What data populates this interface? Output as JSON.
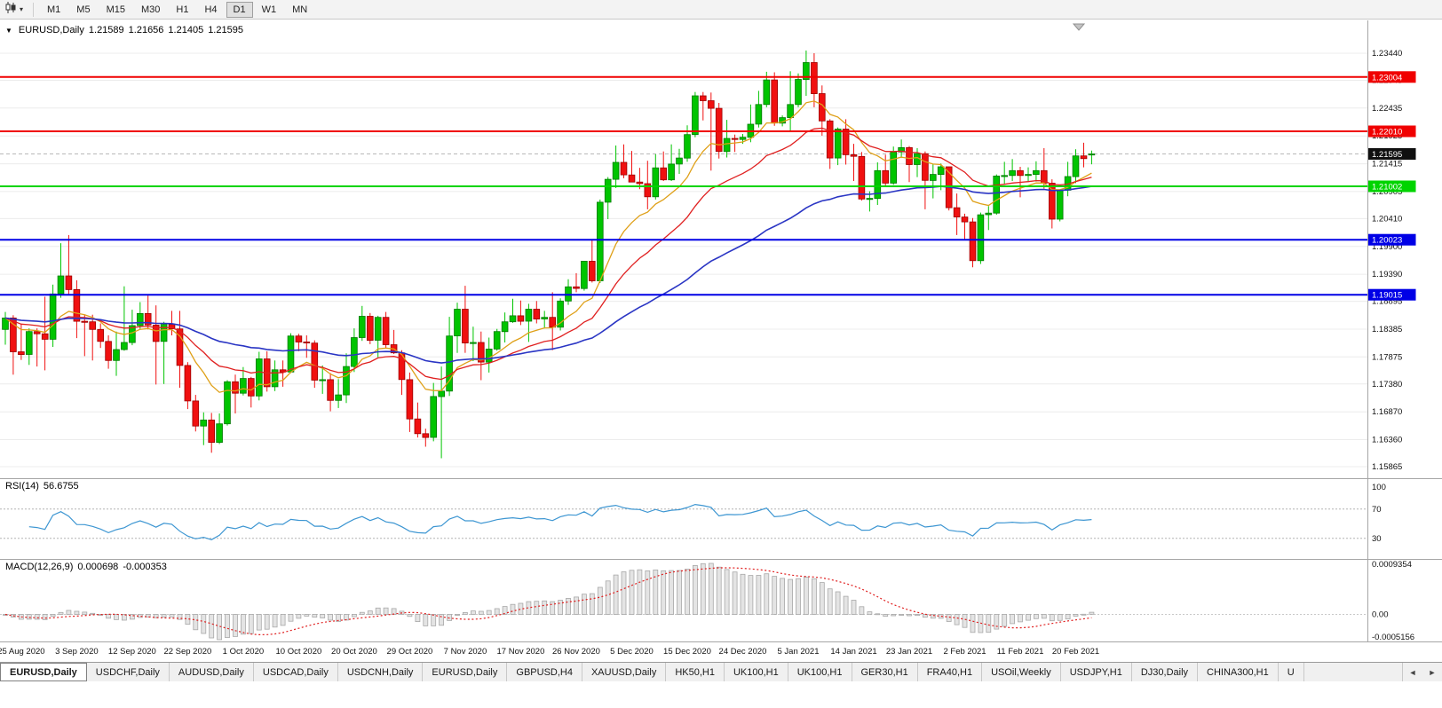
{
  "toolbar": {
    "timeframes": [
      {
        "label": "M1",
        "active": false
      },
      {
        "label": "M5",
        "active": false
      },
      {
        "label": "M15",
        "active": false
      },
      {
        "label": "M30",
        "active": false
      },
      {
        "label": "H1",
        "active": false
      },
      {
        "label": "H4",
        "active": false
      },
      {
        "label": "D1",
        "active": true
      },
      {
        "label": "W1",
        "active": false
      },
      {
        "label": "MN",
        "active": false
      }
    ],
    "dropdown_caret": "▾"
  },
  "chart_header": {
    "collapse_arrow": "▼",
    "symbol_period": "EURUSD,Daily",
    "open": "1.21589",
    "high": "1.21656",
    "low": "1.21405",
    "close": "1.21595"
  },
  "chart_data": {
    "type": "candlestick",
    "symbol": "EURUSD",
    "timeframe": "Daily",
    "candle_colors": {
      "up": "#00c400",
      "down": "#f01010",
      "up_border": "#007a00",
      "down_border": "#9c0000"
    },
    "price_scale_labels": [
      "1.23440",
      "1.22945",
      "1.22435",
      "1.21925",
      "1.21415",
      "1.20905",
      "1.20410",
      "1.19900",
      "1.19390",
      "1.18895",
      "1.18385",
      "1.17875",
      "1.17380",
      "1.16870",
      "1.16360",
      "1.15865"
    ],
    "date_labels": [
      "25 Aug 2020",
      "3 Sep 2020",
      "12 Sep 2020",
      "22 Sep 2020",
      "1 Oct 2020",
      "10 Oct 2020",
      "20 Oct 2020",
      "29 Oct 2020",
      "7 Nov 2020",
      "17 Nov 2020",
      "26 Nov 2020",
      "5 Dec 2020",
      "15 Dec 2020",
      "24 Dec 2020",
      "5 Jan 2021",
      "14 Jan 2021",
      "23 Jan 2021",
      "2 Feb 2021",
      "11 Feb 2021",
      "20 Feb 2021"
    ],
    "horizontal_lines": [
      {
        "price": 1.23004,
        "label": "1.23004",
        "color": "#f00000"
      },
      {
        "price": 1.2201,
        "label": "1.22010",
        "color": "#f00000"
      },
      {
        "price": 1.21002,
        "label": "1.21002",
        "color": "#00d400"
      },
      {
        "price": 1.20023,
        "label": "1.20023",
        "color": "#0000e6"
      },
      {
        "price": 1.19015,
        "label": "1.19015",
        "color": "#0000e6"
      }
    ],
    "current_price": {
      "price": 1.21595,
      "label": "1.21595",
      "badge_color": "#101010"
    },
    "moving_averages": [
      {
        "period": 10,
        "method": "ema",
        "color": "#dfa018"
      },
      {
        "period": 21,
        "method": "ema",
        "color": "#e02020"
      },
      {
        "period": 55,
        "method": "ema",
        "color": "#2a35c4"
      }
    ],
    "indicators": {
      "rsi": {
        "label": "RSI(14)",
        "current": "56.6755",
        "period": 14,
        "scale_labels": [
          "100",
          "70",
          "30"
        ],
        "levels": [
          70,
          30
        ],
        "line_color": "#3d96d2"
      },
      "macd": {
        "label": "MACD(12,26,9)",
        "current_main": "0.000698",
        "current_signal": "-0.000353",
        "fast": 12,
        "slow": 26,
        "signal": 9,
        "scale_labels": [
          "0.0009354",
          "0.00",
          "-0.0005156"
        ],
        "histogram_fill": "#e4e4e4",
        "histogram_border": "#a8a8a8",
        "signal_color": "#e02020"
      }
    },
    "candles": [
      [
        1.1838,
        1.187,
        1.181,
        1.1859
      ],
      [
        1.1859,
        1.1864,
        1.1755,
        1.1797
      ],
      [
        1.1797,
        1.1848,
        1.1782,
        1.1792
      ],
      [
        1.1792,
        1.184,
        1.1773,
        1.1834
      ],
      [
        1.1834,
        1.184,
        1.177,
        1.183
      ],
      [
        1.183,
        1.1898,
        1.1763,
        1.182
      ],
      [
        1.182,
        1.192,
        1.1806,
        1.1903
      ],
      [
        1.1903,
        1.1996,
        1.1896,
        1.1936
      ],
      [
        1.1936,
        1.2011,
        1.1901,
        1.1911
      ],
      [
        1.1911,
        1.1928,
        1.1822,
        1.1853
      ],
      [
        1.1853,
        1.1865,
        1.1789,
        1.1852
      ],
      [
        1.1852,
        1.1865,
        1.1781,
        1.1838
      ],
      [
        1.1838,
        1.1849,
        1.1804,
        1.1816
      ],
      [
        1.1816,
        1.1827,
        1.1766,
        1.1781
      ],
      [
        1.1781,
        1.1834,
        1.1753,
        1.1801
      ],
      [
        1.1801,
        1.1917,
        1.1799,
        1.1814
      ],
      [
        1.1814,
        1.1874,
        1.1809,
        1.1845
      ],
      [
        1.1845,
        1.1888,
        1.1839,
        1.1867
      ],
      [
        1.1867,
        1.19,
        1.1838,
        1.1846
      ],
      [
        1.1846,
        1.1882,
        1.1737,
        1.1816
      ],
      [
        1.1816,
        1.1852,
        1.1738,
        1.1847
      ],
      [
        1.1847,
        1.1872,
        1.1827,
        1.1839
      ],
      [
        1.1839,
        1.1872,
        1.1731,
        1.1772
      ],
      [
        1.1772,
        1.1778,
        1.1692,
        1.1707
      ],
      [
        1.1707,
        1.1718,
        1.1651,
        1.1661
      ],
      [
        1.1661,
        1.1686,
        1.1626,
        1.1672
      ],
      [
        1.1672,
        1.1685,
        1.1612,
        1.1631
      ],
      [
        1.1631,
        1.1684,
        1.1628,
        1.1665
      ],
      [
        1.1665,
        1.1745,
        1.1662,
        1.1742
      ],
      [
        1.1742,
        1.1755,
        1.1684,
        1.1721
      ],
      [
        1.1721,
        1.1769,
        1.1717,
        1.1748
      ],
      [
        1.1748,
        1.1751,
        1.1695,
        1.1716
      ],
      [
        1.1716,
        1.1797,
        1.1708,
        1.1784
      ],
      [
        1.1784,
        1.1798,
        1.1724,
        1.1733
      ],
      [
        1.1733,
        1.1781,
        1.1725,
        1.1764
      ],
      [
        1.1764,
        1.1781,
        1.1733,
        1.176
      ],
      [
        1.176,
        1.1831,
        1.1758,
        1.1826
      ],
      [
        1.1826,
        1.183,
        1.1798,
        1.1815
      ],
      [
        1.1815,
        1.1827,
        1.1786,
        1.1813
      ],
      [
        1.1813,
        1.1818,
        1.1731,
        1.1745
      ],
      [
        1.1745,
        1.1772,
        1.172,
        1.1746
      ],
      [
        1.1746,
        1.1758,
        1.1688,
        1.1708
      ],
      [
        1.1708,
        1.1747,
        1.1694,
        1.1718
      ],
      [
        1.1718,
        1.1794,
        1.1703,
        1.177
      ],
      [
        1.177,
        1.184,
        1.176,
        1.1823
      ],
      [
        1.1823,
        1.1881,
        1.1817,
        1.1862
      ],
      [
        1.1862,
        1.1868,
        1.1811,
        1.1818
      ],
      [
        1.1818,
        1.1863,
        1.1787,
        1.186
      ],
      [
        1.186,
        1.187,
        1.1803,
        1.181
      ],
      [
        1.181,
        1.1837,
        1.1793,
        1.1795
      ],
      [
        1.1795,
        1.18,
        1.1718,
        1.1746
      ],
      [
        1.1746,
        1.1759,
        1.165,
        1.1674
      ],
      [
        1.1674,
        1.1704,
        1.164,
        1.1647
      ],
      [
        1.1647,
        1.1656,
        1.1623,
        1.164
      ],
      [
        1.164,
        1.174,
        1.1633,
        1.1715
      ],
      [
        1.1715,
        1.177,
        1.1602,
        1.1725
      ],
      [
        1.1725,
        1.1861,
        1.1716,
        1.1826
      ],
      [
        1.1826,
        1.1887,
        1.1795,
        1.1875
      ],
      [
        1.1875,
        1.1918,
        1.1795,
        1.1813
      ],
      [
        1.1813,
        1.1843,
        1.178,
        1.1814
      ],
      [
        1.1814,
        1.1834,
        1.1745,
        1.1778
      ],
      [
        1.1778,
        1.1823,
        1.1759,
        1.1802
      ],
      [
        1.1802,
        1.1839,
        1.1799,
        1.1834
      ],
      [
        1.1834,
        1.1869,
        1.1814,
        1.1852
      ],
      [
        1.1852,
        1.1894,
        1.185,
        1.1863
      ],
      [
        1.1863,
        1.1891,
        1.1846,
        1.1853
      ],
      [
        1.1853,
        1.1885,
        1.1815,
        1.1875
      ],
      [
        1.1875,
        1.189,
        1.1849,
        1.1857
      ],
      [
        1.1857,
        1.1872,
        1.184,
        1.186
      ],
      [
        1.186,
        1.1906,
        1.18,
        1.1842
      ],
      [
        1.1842,
        1.1895,
        1.1836,
        1.189
      ],
      [
        1.189,
        1.193,
        1.1883,
        1.1916
      ],
      [
        1.1916,
        1.1941,
        1.1906,
        1.1913
      ],
      [
        1.1913,
        1.1963,
        1.1909,
        1.1963
      ],
      [
        1.1963,
        1.2003,
        1.1924,
        1.1927
      ],
      [
        1.1927,
        1.2076,
        1.1923,
        1.2071
      ],
      [
        1.2071,
        1.2117,
        1.204,
        1.2113
      ],
      [
        1.2113,
        1.2175,
        1.2097,
        1.2144
      ],
      [
        1.2144,
        1.2177,
        1.2115,
        1.2121
      ],
      [
        1.2121,
        1.2165,
        1.2108,
        1.2108
      ],
      [
        1.2108,
        1.2134,
        1.2095,
        1.2105
      ],
      [
        1.2105,
        1.2147,
        1.2058,
        1.2081
      ],
      [
        1.2081,
        1.2159,
        1.2076,
        1.2134
      ],
      [
        1.2134,
        1.2164,
        1.211,
        1.2112
      ],
      [
        1.2112,
        1.2177,
        1.211,
        1.2141
      ],
      [
        1.2141,
        1.2169,
        1.2123,
        1.2152
      ],
      [
        1.2152,
        1.2212,
        1.2145,
        1.2195
      ],
      [
        1.2195,
        1.2273,
        1.219,
        1.2266
      ],
      [
        1.2266,
        1.2273,
        1.2221,
        1.2257
      ],
      [
        1.2257,
        1.2272,
        1.2129,
        1.2243
      ],
      [
        1.2243,
        1.2253,
        1.2151,
        1.2164
      ],
      [
        1.2164,
        1.2222,
        1.2153,
        1.2188
      ],
      [
        1.2188,
        1.2195,
        1.2163,
        1.2186
      ],
      [
        1.2186,
        1.2196,
        1.2178,
        1.219
      ],
      [
        1.219,
        1.225,
        1.2181,
        1.2214
      ],
      [
        1.2214,
        1.2275,
        1.2208,
        1.225
      ],
      [
        1.225,
        1.231,
        1.2245,
        1.2295
      ],
      [
        1.2295,
        1.2309,
        1.2211,
        1.2216
      ],
      [
        1.2216,
        1.223,
        1.221,
        1.2226
      ],
      [
        1.2226,
        1.2311,
        1.22,
        1.225
      ],
      [
        1.225,
        1.2307,
        1.2245,
        1.2296
      ],
      [
        1.2296,
        1.2349,
        1.2266,
        1.2327
      ],
      [
        1.2327,
        1.2344,
        1.2245,
        1.227
      ],
      [
        1.227,
        1.2285,
        1.2193,
        1.222
      ],
      [
        1.222,
        1.2223,
        1.2132,
        1.2152
      ],
      [
        1.2152,
        1.2208,
        1.2139,
        1.2205
      ],
      [
        1.2205,
        1.2223,
        1.214,
        1.2158
      ],
      [
        1.2158,
        1.2178,
        1.211,
        1.2155
      ],
      [
        1.2155,
        1.2163,
        1.2074,
        1.2077
      ],
      [
        1.2077,
        1.2091,
        1.2054,
        1.2078
      ],
      [
        1.2078,
        1.2144,
        1.2066,
        1.2129
      ],
      [
        1.2129,
        1.2158,
        1.2101,
        1.2106
      ],
      [
        1.2106,
        1.2173,
        1.2103,
        1.2163
      ],
      [
        1.2163,
        1.2186,
        1.2152,
        1.2171
      ],
      [
        1.2171,
        1.2174,
        1.2108,
        1.214
      ],
      [
        1.214,
        1.217,
        1.2117,
        1.216
      ],
      [
        1.216,
        1.2164,
        1.2058,
        1.2111
      ],
      [
        1.2111,
        1.2141,
        1.2078,
        1.2122
      ],
      [
        1.2122,
        1.2142,
        1.2093,
        1.2136
      ],
      [
        1.2136,
        1.2136,
        1.2056,
        1.2061
      ],
      [
        1.2061,
        1.2087,
        1.2011,
        1.2044
      ],
      [
        1.2044,
        1.205,
        1.2003,
        1.2035
      ],
      [
        1.2035,
        1.2042,
        1.1952,
        1.1964
      ],
      [
        1.1964,
        1.2052,
        1.1958,
        1.2048
      ],
      [
        1.2048,
        1.2064,
        1.202,
        1.2051
      ],
      [
        1.2051,
        1.2122,
        1.2048,
        1.2119
      ],
      [
        1.2119,
        1.2145,
        1.2103,
        1.212
      ],
      [
        1.212,
        1.215,
        1.211,
        1.2129
      ],
      [
        1.2129,
        1.2136,
        1.208,
        1.212
      ],
      [
        1.212,
        1.2135,
        1.2108,
        1.2122
      ],
      [
        1.2122,
        1.2146,
        1.2109,
        1.2129
      ],
      [
        1.2129,
        1.217,
        1.2096,
        1.2106
      ],
      [
        1.2106,
        1.2113,
        1.2023,
        1.204
      ],
      [
        1.204,
        1.209,
        1.2036,
        1.2093
      ],
      [
        1.2093,
        1.2145,
        1.2082,
        1.2118
      ],
      [
        1.2118,
        1.2168,
        1.2106,
        1.2156
      ],
      [
        1.2156,
        1.218,
        1.2135,
        1.2151
      ],
      [
        1.21589,
        1.21656,
        1.21405,
        1.21595
      ]
    ]
  },
  "tabs": {
    "items": [
      {
        "label": "EURUSD,Daily",
        "active": true
      },
      {
        "label": "USDCHF,Daily",
        "active": false
      },
      {
        "label": "AUDUSD,Daily",
        "active": false
      },
      {
        "label": "USDCAD,Daily",
        "active": false
      },
      {
        "label": "USDCNH,Daily",
        "active": false
      },
      {
        "label": "EURUSD,Daily",
        "active": false
      },
      {
        "label": "GBPUSD,H4",
        "active": false
      },
      {
        "label": "XAUUSD,Daily",
        "active": false
      },
      {
        "label": "HK50,H1",
        "active": false
      },
      {
        "label": "UK100,H1",
        "active": false
      },
      {
        "label": "UK100,H1",
        "active": false
      },
      {
        "label": "GER30,H1",
        "active": false
      },
      {
        "label": "FRA40,H1",
        "active": false
      },
      {
        "label": "USOil,Weekly",
        "active": false
      },
      {
        "label": "USDJPY,H1",
        "active": false
      },
      {
        "label": "DJ30,Daily",
        "active": false
      },
      {
        "label": "CHINA300,H1",
        "active": false
      },
      {
        "label": "U",
        "active": false
      }
    ],
    "scroll_left": "◄",
    "scroll_right": "►"
  }
}
